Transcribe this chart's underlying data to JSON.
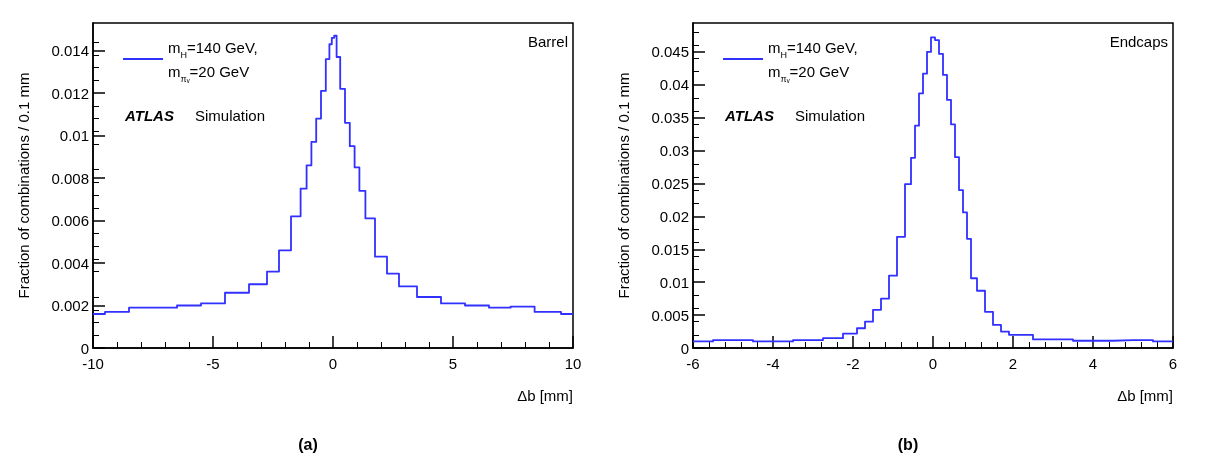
{
  "chart_data": [
    {
      "type": "step",
      "xlabel": "Δb [mm]",
      "ylabel": "Fraction of combinations / 0.1 mm",
      "annotations": [
        "ATLAS",
        "Simulation",
        "Barrel",
        "(a)"
      ],
      "legend": "top left",
      "marker": "none",
      "grid": false,
      "xlim": [
        -10,
        10
      ],
      "xticks": [
        -10,
        -5,
        0,
        5,
        10
      ],
      "ylim": [
        0,
        0.0153
      ],
      "yticks": [
        0,
        0.002,
        0.004,
        0.006,
        0.008,
        0.01,
        0.012,
        0.014
      ],
      "series": [
        {
          "name": "m$_{H}$=140 GeV,\nm$_{πᵥ}$=20 GeV",
          "color": "#3030ff",
          "x": [
            -10,
            -9,
            -8,
            -7,
            -6,
            -5,
            -4,
            -3,
            -2.5,
            -2,
            -1.5,
            -1.2,
            -1,
            -0.8,
            -0.6,
            -0.4,
            -0.2,
            -0.1,
            0,
            0.1,
            0.2,
            0.4,
            0.6,
            0.8,
            1,
            1.2,
            1.5,
            2,
            2.5,
            3,
            4,
            5,
            6,
            7,
            7.8,
            9,
            10
          ],
          "values": [
            0.0016,
            0.0017,
            0.0019,
            0.0019,
            0.002,
            0.0021,
            0.0026,
            0.003,
            0.0036,
            0.0046,
            0.0062,
            0.0075,
            0.0086,
            0.0097,
            0.0108,
            0.0121,
            0.0136,
            0.0143,
            0.0146,
            0.0147,
            0.0137,
            0.0122,
            0.0106,
            0.0095,
            0.0085,
            0.0074,
            0.0061,
            0.0043,
            0.0035,
            0.0029,
            0.0024,
            0.0021,
            0.002,
            0.0019,
            0.00195,
            0.0017,
            0.0016
          ]
        }
      ]
    },
    {
      "type": "step",
      "xlabel": "Δb [mm]",
      "ylabel": "Fraction of combinations / 0.1 mm",
      "annotations": [
        "ATLAS",
        "Simulation",
        "Endcaps",
        "(b)"
      ],
      "legend": "top left",
      "marker": "none",
      "grid": false,
      "xlim": [
        -6,
        6
      ],
      "xticks": [
        -6,
        -4,
        -2,
        0,
        2,
        4,
        6
      ],
      "ylim": [
        0,
        0.0494
      ],
      "yticks": [
        0,
        0.005,
        0.01,
        0.015,
        0.02,
        0.025,
        0.03,
        0.035,
        0.04,
        0.045
      ],
      "series": [
        {
          "name": "m$_{H}$=140 GeV,\nm$_{πᵥ}$=20 GeV",
          "color": "#3030ff",
          "x": [
            -6,
            -5,
            -4,
            -3,
            -2.5,
            -2,
            -1.8,
            -1.6,
            -1.4,
            -1.2,
            -1,
            -0.8,
            -0.6,
            -0.5,
            -0.4,
            -0.3,
            -0.2,
            -0.1,
            0,
            0.1,
            0.2,
            0.3,
            0.4,
            0.5,
            0.6,
            0.7,
            0.8,
            0.9,
            1,
            1.2,
            1.4,
            1.6,
            1.8,
            2,
            3,
            4,
            5,
            6
          ],
          "values": [
            0.001,
            0.0012,
            0.001,
            0.0012,
            0.0015,
            0.0022,
            0.003,
            0.004,
            0.0058,
            0.0075,
            0.011,
            0.0169,
            0.0249,
            0.0289,
            0.0338,
            0.0387,
            0.0417,
            0.045,
            0.0472,
            0.0468,
            0.0447,
            0.0415,
            0.0377,
            0.034,
            0.029,
            0.024,
            0.0206,
            0.0166,
            0.0106,
            0.0087,
            0.0055,
            0.0035,
            0.0025,
            0.002,
            0.0013,
            0.0011,
            0.0012,
            0.001
          ]
        }
      ]
    }
  ]
}
